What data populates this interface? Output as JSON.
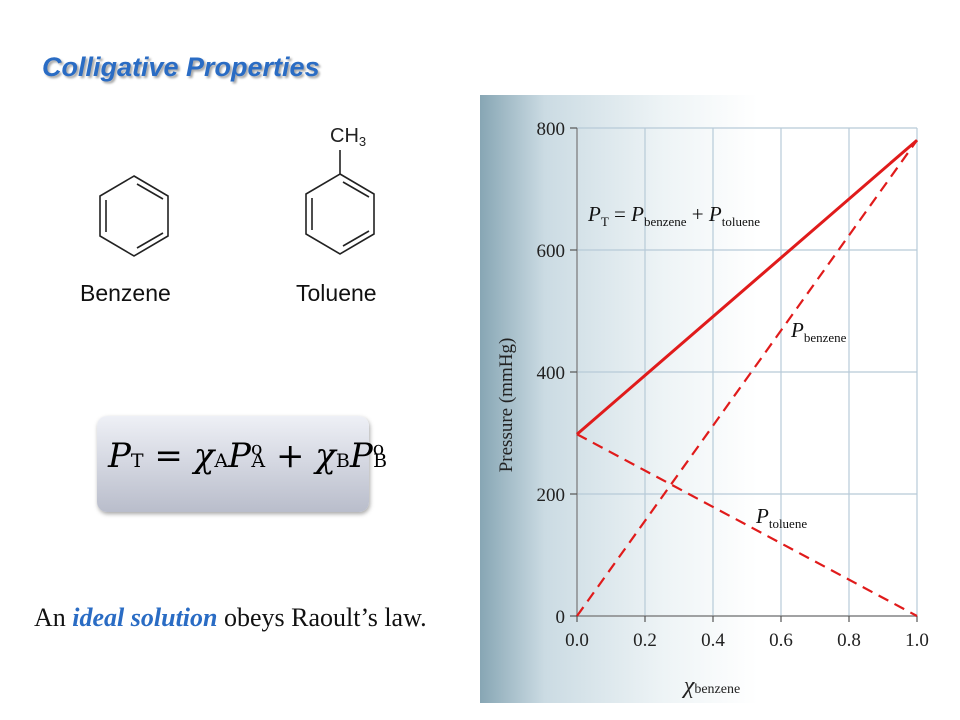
{
  "slide": {
    "title": "Colligative Properties",
    "molecules": {
      "benzene": "Benzene",
      "toluene": "Toluene",
      "methyl_group": "CH3"
    },
    "equation": {
      "P": "P",
      "T": "T",
      "equals": "=",
      "plus": "+",
      "chi": "χ",
      "A": "A",
      "B": "B",
      "degree": "o"
    },
    "statement": {
      "prefix": "An ",
      "emphasis": "ideal solution",
      "suffix": " obeys Raoult’s law."
    }
  },
  "colors": {
    "title": "#2a6cc4",
    "emphasis": "#2a6cc4",
    "line": "#e01b1b",
    "grid": "#b7cad8"
  },
  "chart_data": {
    "type": "line",
    "xlabel": "χbenzene",
    "ylabel": "Pressure (mmHg)",
    "xlim": [
      0,
      1.0
    ],
    "ylim": [
      0,
      800
    ],
    "xticks": [
      "0.0",
      "0.2",
      "0.4",
      "0.6",
      "0.8",
      "1.0"
    ],
    "yticks": [
      "0",
      "200",
      "400",
      "600",
      "800"
    ],
    "grid": true,
    "series": [
      {
        "name": "PT",
        "style": "solid",
        "x": [
          0.0,
          1.0
        ],
        "y": [
          298,
          780
        ]
      },
      {
        "name": "Pbenzene",
        "style": "dashed",
        "x": [
          0.0,
          1.0
        ],
        "y": [
          0,
          780
        ]
      },
      {
        "name": "Ptoluene",
        "style": "dashed",
        "x": [
          0.0,
          1.0
        ],
        "y": [
          298,
          0
        ]
      }
    ],
    "annotations": [
      {
        "text": "PT = Pbenzene + Ptoluene",
        "P": "P",
        "T": "T",
        "equals": "=",
        "plus": "+",
        "benzene": "benzene",
        "toluene": "toluene"
      },
      {
        "text": "Pbenzene",
        "P": "P",
        "sub": "benzene"
      },
      {
        "text": "Ptoluene",
        "P": "P",
        "sub": "toluene"
      }
    ]
  }
}
